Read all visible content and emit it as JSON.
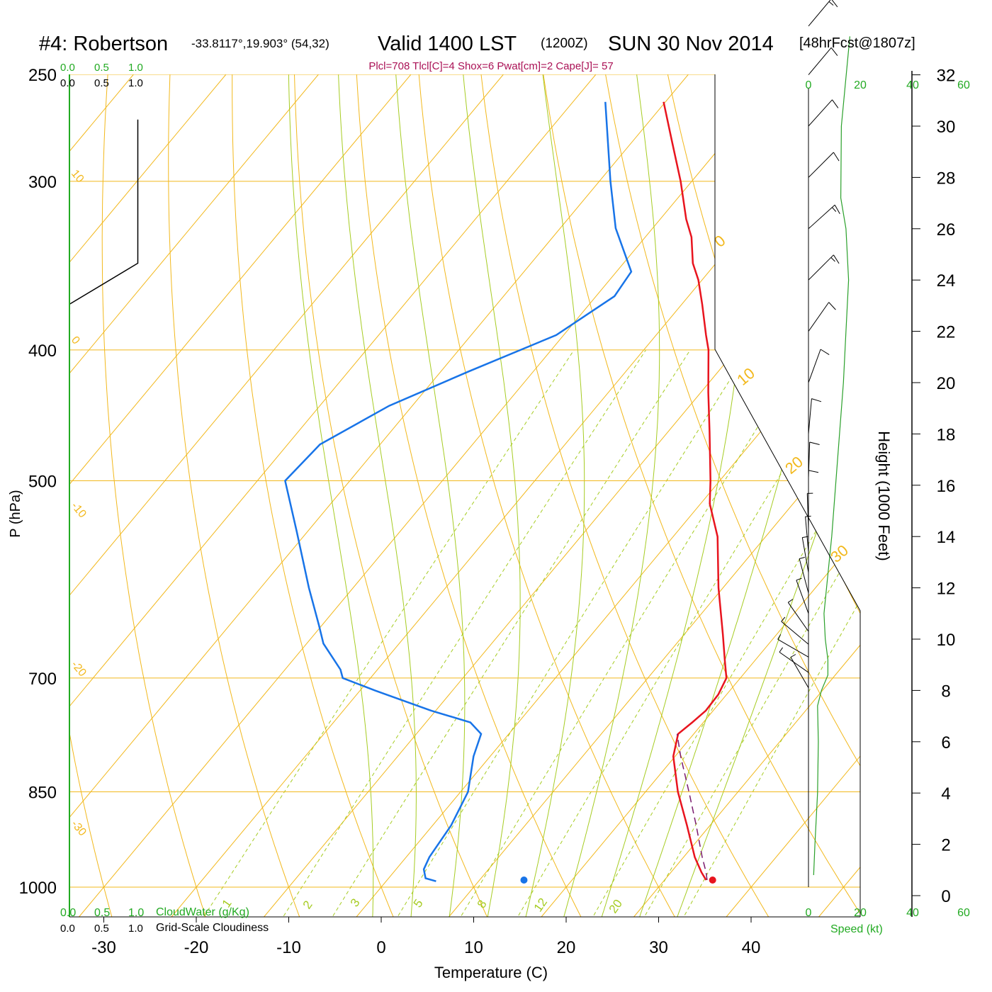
{
  "title": {
    "station": "#4: Robertson",
    "coords": "-33.8117°,19.903° (54,32)",
    "valid": "Valid 1400 LST",
    "utc": "(1200Z)",
    "date": "SUN 30 Nov 2014",
    "forecast": "[48hrFcst@1807z]"
  },
  "indices": "Plcl=708 Tlcl[C]=4 Shox=6 Pwat[cm]=2 Cape[J]= 57",
  "labels": {
    "ylabel": "P (hPa)",
    "xlabel": "Temperature (C)",
    "height_label": "Height (1000 Feet)",
    "speed_label": "Speed (kt)",
    "cloud_water_label": "CloudWater (g/Kg)",
    "cloudiness_label": "Grid-Scale Cloudiness"
  },
  "colors": {
    "isobar": "#f2b81c",
    "isotherm": "#f2b81c",
    "dry_adiabat": "#f2b81c",
    "moist_adiabat": "#a6cc22",
    "mixing_ratio": "#a6cc22",
    "temperature": "#e8141e",
    "dewpoint": "#1874e8",
    "parcel": "#7a1a6e",
    "wind_speed": "#2aa02a",
    "scale_green": "#22aa22",
    "indices": "#aa1155"
  },
  "scales": {
    "cloud_top": [
      "0.0",
      "0.5",
      "1.0"
    ],
    "cloud_black_top": [
      "0.0",
      "0.5",
      "1.0"
    ],
    "cloud_bottom": [
      "0.0",
      "0.5",
      "1.0"
    ],
    "cloudiness_bottom": [
      "0.0",
      "0.5",
      "1.0"
    ],
    "speed_ticks": [
      "0",
      "20",
      "40",
      "60"
    ]
  },
  "chart_data": {
    "type": "skew-t",
    "ylim_hpa": [
      1000,
      250
    ],
    "y_ticks_hpa": [
      250,
      300,
      400,
      500,
      700,
      850,
      1000
    ],
    "x_ticks_c": [
      -30,
      -20,
      -10,
      0,
      10,
      20,
      30,
      40
    ],
    "height_ticks_kft": [
      0,
      2,
      4,
      6,
      8,
      10,
      12,
      14,
      16,
      18,
      20,
      22,
      24,
      26,
      28,
      30,
      32
    ],
    "isotherm_labels_c": [
      10,
      0,
      -10,
      -20,
      -30
    ],
    "right_isotherm_labels_c": [
      0,
      10,
      20,
      30
    ],
    "mixing_ratio_labels": [
      "1",
      "2",
      "3",
      "5",
      "8",
      "12",
      "20"
    ],
    "temperature": [
      {
        "p": 988,
        "t": 34.5
      },
      {
        "p": 975,
        "t": 33.3
      },
      {
        "p": 950,
        "t": 31.2
      },
      {
        "p": 900,
        "t": 27.5
      },
      {
        "p": 850,
        "t": 23.5
      },
      {
        "p": 800,
        "t": 19.8
      },
      {
        "p": 770,
        "t": 18.3
      },
      {
        "p": 755,
        "t": 18.8
      },
      {
        "p": 740,
        "t": 19.2
      },
      {
        "p": 720,
        "t": 19.1
      },
      {
        "p": 700,
        "t": 18.5
      },
      {
        "p": 680,
        "t": 16.8
      },
      {
        "p": 650,
        "t": 14.2
      },
      {
        "p": 600,
        "t": 9.5
      },
      {
        "p": 550,
        "t": 4.8
      },
      {
        "p": 520,
        "t": 1.0
      },
      {
        "p": 500,
        "t": -1.0
      },
      {
        "p": 460,
        "t": -5.5
      },
      {
        "p": 430,
        "t": -9.2
      },
      {
        "p": 400,
        "t": -13.0
      },
      {
        "p": 390,
        "t": -14.6
      },
      {
        "p": 370,
        "t": -17.8
      },
      {
        "p": 355,
        "t": -20.4
      },
      {
        "p": 345,
        "t": -22.5
      },
      {
        "p": 330,
        "t": -25.0
      },
      {
        "p": 320,
        "t": -27.2
      },
      {
        "p": 300,
        "t": -31.2
      },
      {
        "p": 280,
        "t": -35.8
      },
      {
        "p": 262,
        "t": -40.2
      }
    ],
    "dewpoint": [
      {
        "p": 990,
        "t": 5.4
      },
      {
        "p": 985,
        "t": 4.0
      },
      {
        "p": 970,
        "t": 3.0
      },
      {
        "p": 950,
        "t": 2.5
      },
      {
        "p": 900,
        "t": 2.0
      },
      {
        "p": 850,
        "t": 0.8
      },
      {
        "p": 800,
        "t": -1.8
      },
      {
        "p": 770,
        "t": -3.0
      },
      {
        "p": 755,
        "t": -5.2
      },
      {
        "p": 740,
        "t": -10.5
      },
      {
        "p": 715,
        "t": -18.4
      },
      {
        "p": 700,
        "t": -23.0
      },
      {
        "p": 690,
        "t": -24.0
      },
      {
        "p": 660,
        "t": -28.2
      },
      {
        "p": 640,
        "t": -30.3
      },
      {
        "p": 600,
        "t": -34.8
      },
      {
        "p": 545,
        "t": -41.2
      },
      {
        "p": 500,
        "t": -47.0
      },
      {
        "p": 470,
        "t": -46.5
      },
      {
        "p": 440,
        "t": -42.5
      },
      {
        "p": 415,
        "t": -37.0
      },
      {
        "p": 390,
        "t": -30.8
      },
      {
        "p": 365,
        "t": -28.0
      },
      {
        "p": 350,
        "t": -28.4
      },
      {
        "p": 325,
        "t": -34.0
      },
      {
        "p": 300,
        "t": -38.8
      },
      {
        "p": 262,
        "t": -46.5
      }
    ],
    "parcel": [
      {
        "p": 988,
        "t": 34.6
      },
      {
        "p": 975,
        "t": 33.8
      },
      {
        "p": 950,
        "t": 32.0
      },
      {
        "p": 900,
        "t": 28.5
      },
      {
        "p": 850,
        "t": 24.7
      },
      {
        "p": 800,
        "t": 20.6
      },
      {
        "p": 770,
        "t": 18.2
      }
    ],
    "surface_temp_c": 35.2,
    "surface_dewpoint_c": 14.8,
    "surface_p_hpa": 988,
    "cloudiness": [
      {
        "p": 270,
        "v": 0.75
      },
      {
        "p": 345,
        "v": 0.75
      },
      {
        "p": 370,
        "v": 0.0
      }
    ],
    "wind_speed_kt": [
      {
        "h": 0.8,
        "s": 2
      },
      {
        "h": 2,
        "s": 2.5
      },
      {
        "h": 4,
        "s": 3.5
      },
      {
        "h": 6,
        "s": 3.8
      },
      {
        "h": 7.4,
        "s": 3.5
      },
      {
        "h": 8,
        "s": 5
      },
      {
        "h": 8.6,
        "s": 7.5
      },
      {
        "h": 9.2,
        "s": 7.5
      },
      {
        "h": 10,
        "s": 6.5
      },
      {
        "h": 11,
        "s": 6
      },
      {
        "h": 12,
        "s": 7
      },
      {
        "h": 14,
        "s": 9
      },
      {
        "h": 16,
        "s": 10.5
      },
      {
        "h": 18,
        "s": 12
      },
      {
        "h": 20,
        "s": 13.5
      },
      {
        "h": 22,
        "s": 14.5
      },
      {
        "h": 24,
        "s": 15.5
      },
      {
        "h": 26,
        "s": 14.5
      },
      {
        "h": 27.2,
        "s": 12.5
      },
      {
        "h": 30,
        "s": 12.7
      },
      {
        "h": 33.5,
        "s": 16
      }
    ],
    "wind_barbs": [
      {
        "h": 0.8,
        "dir": 180,
        "spd": 3
      },
      {
        "h": 1.2,
        "dir": 180,
        "spd": 3
      },
      {
        "h": 1.6,
        "dir": 180,
        "spd": 3
      },
      {
        "h": 2.0,
        "dir": 180,
        "spd": 3
      },
      {
        "h": 2.4,
        "dir": 180,
        "spd": 3
      },
      {
        "h": 2.8,
        "dir": 180,
        "spd": 3
      },
      {
        "h": 3.2,
        "dir": 180,
        "spd": 4
      },
      {
        "h": 3.6,
        "dir": 180,
        "spd": 4
      },
      {
        "h": 4.0,
        "dir": 180,
        "spd": 4
      },
      {
        "h": 4.4,
        "dir": 180,
        "spd": 4
      },
      {
        "h": 4.8,
        "dir": 180,
        "spd": 4
      },
      {
        "h": 5.2,
        "dir": 180,
        "spd": 4
      },
      {
        "h": 6.0,
        "dir": 180,
        "spd": 4
      },
      {
        "h": 6.7,
        "dir": 180,
        "spd": 4
      },
      {
        "h": 7.4,
        "dir": 180,
        "spd": 4
      },
      {
        "h": 8.1,
        "dir": 150,
        "spd": 5
      },
      {
        "h": 8.7,
        "dir": 125,
        "spd": 7
      },
      {
        "h": 9.3,
        "dir": 120,
        "spd": 8
      },
      {
        "h": 9.8,
        "dir": 130,
        "spd": 7
      },
      {
        "h": 10.3,
        "dir": 145,
        "spd": 6
      },
      {
        "h": 11.0,
        "dir": 160,
        "spd": 6
      },
      {
        "h": 11.8,
        "dir": 165,
        "spd": 6
      },
      {
        "h": 12.6,
        "dir": 170,
        "spd": 7
      },
      {
        "h": 13.4,
        "dir": 175,
        "spd": 8
      },
      {
        "h": 14.3,
        "dir": 178,
        "spd": 9
      },
      {
        "h": 15.2,
        "dir": 180,
        "spd": 10
      },
      {
        "h": 16.3,
        "dir": 182,
        "spd": 10
      },
      {
        "h": 18.0,
        "dir": 185,
        "spd": 12
      },
      {
        "h": 20.0,
        "dir": 200,
        "spd": 13
      },
      {
        "h": 22.0,
        "dir": 215,
        "spd": 14
      },
      {
        "h": 24.0,
        "dir": 225,
        "spd": 15
      },
      {
        "h": 26.0,
        "dir": 228,
        "spd": 15
      },
      {
        "h": 28.0,
        "dir": 225,
        "spd": 13
      },
      {
        "h": 30.0,
        "dir": 222,
        "spd": 13
      },
      {
        "h": 32.0,
        "dir": 220,
        "spd": 14
      },
      {
        "h": 33.9,
        "dir": 220,
        "spd": 16
      }
    ]
  }
}
